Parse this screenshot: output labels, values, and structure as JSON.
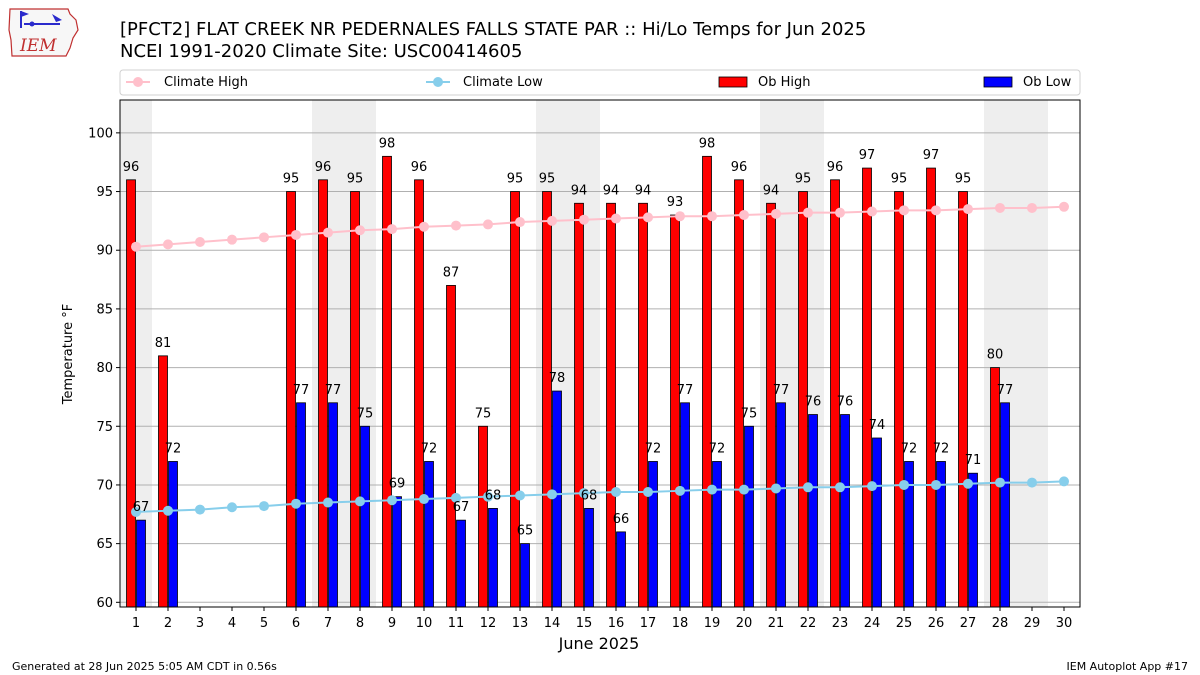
{
  "header": {
    "title_line1": "[PFCT2] FLAT CREEK NR PEDERNALES FALLS STATE PAR :: Hi/Lo Temps for Jun 2025",
    "title_line2": "NCEI 1991-2020 Climate Site: USC00414605"
  },
  "logo": {
    "text": "IEM"
  },
  "footer": {
    "generated": "Generated at 28 Jun 2025 5:05 AM CDT in 0.56s",
    "app": "IEM Autoplot App #17"
  },
  "colors": {
    "ob_high": "#ff0000",
    "ob_low": "#0000ff",
    "climate_high": "#ffc0cb",
    "climate_low": "#87ceeb",
    "weekend_shade": "#eeeeee",
    "grid": "#b0b0b0"
  },
  "chart_data": {
    "type": "bar",
    "xlabel": "June 2025",
    "ylabel": "Temperature °F",
    "ylim": [
      59.6,
      102.8
    ],
    "yticks": [
      60,
      65,
      70,
      75,
      80,
      85,
      90,
      95,
      100
    ],
    "grid": "horizontal",
    "legend_position": "top",
    "days": [
      1,
      2,
      3,
      4,
      5,
      6,
      7,
      8,
      9,
      10,
      11,
      12,
      13,
      14,
      15,
      16,
      17,
      18,
      19,
      20,
      21,
      22,
      23,
      24,
      25,
      26,
      27,
      28,
      29,
      30
    ],
    "weekend_bands": [
      [
        1,
        1
      ],
      [
        7,
        8
      ],
      [
        14,
        15
      ],
      [
        21,
        22
      ],
      [
        28,
        29
      ]
    ],
    "series": [
      {
        "name": "Ob High",
        "kind": "bar",
        "values": [
          96,
          81,
          null,
          null,
          null,
          95,
          96,
          95,
          98,
          96,
          87,
          75,
          95,
          95,
          94,
          94,
          94,
          93,
          98,
          96,
          94,
          95,
          96,
          97,
          95,
          97,
          95,
          80,
          null,
          null
        ]
      },
      {
        "name": "Ob Low",
        "kind": "bar",
        "values": [
          67,
          72,
          null,
          null,
          null,
          77,
          77,
          75,
          69,
          72,
          67,
          68,
          65,
          78,
          68,
          66,
          72,
          77,
          72,
          75,
          77,
          76,
          76,
          74,
          72,
          72,
          71,
          77,
          null,
          null
        ]
      },
      {
        "name": "Climate High",
        "kind": "line",
        "values": [
          90.3,
          90.5,
          90.7,
          90.9,
          91.1,
          91.3,
          91.5,
          91.7,
          91.8,
          92.0,
          92.1,
          92.2,
          92.4,
          92.5,
          92.6,
          92.7,
          92.8,
          92.9,
          92.9,
          93.0,
          93.1,
          93.2,
          93.2,
          93.3,
          93.4,
          93.4,
          93.5,
          93.6,
          93.6,
          93.7
        ]
      },
      {
        "name": "Climate Low",
        "kind": "line",
        "values": [
          67.7,
          67.8,
          67.9,
          68.1,
          68.2,
          68.4,
          68.5,
          68.6,
          68.7,
          68.8,
          68.9,
          69.0,
          69.1,
          69.2,
          69.3,
          69.4,
          69.4,
          69.5,
          69.6,
          69.6,
          69.7,
          69.8,
          69.8,
          69.9,
          70.0,
          70.0,
          70.1,
          70.2,
          70.2,
          70.3
        ]
      }
    ],
    "bar_labels_high": [
      "96",
      "81",
      "",
      "",
      "",
      "95",
      "96",
      "95",
      "98",
      "96",
      "87",
      "75",
      "95",
      "95",
      "94",
      "94",
      "94",
      "93",
      "98",
      "96",
      "94",
      "95",
      "96",
      "97",
      "95",
      "97",
      "95",
      "80",
      "",
      ""
    ],
    "bar_labels_low": [
      "67",
      "72",
      "",
      "",
      "",
      "77",
      "77",
      "75",
      "69",
      "72",
      "67",
      "68",
      "65",
      "78",
      "68",
      "66",
      "72",
      "77",
      "72",
      "75",
      "77",
      "76",
      "76",
      "74",
      "72",
      "72",
      "71",
      "77",
      "",
      ""
    ]
  }
}
